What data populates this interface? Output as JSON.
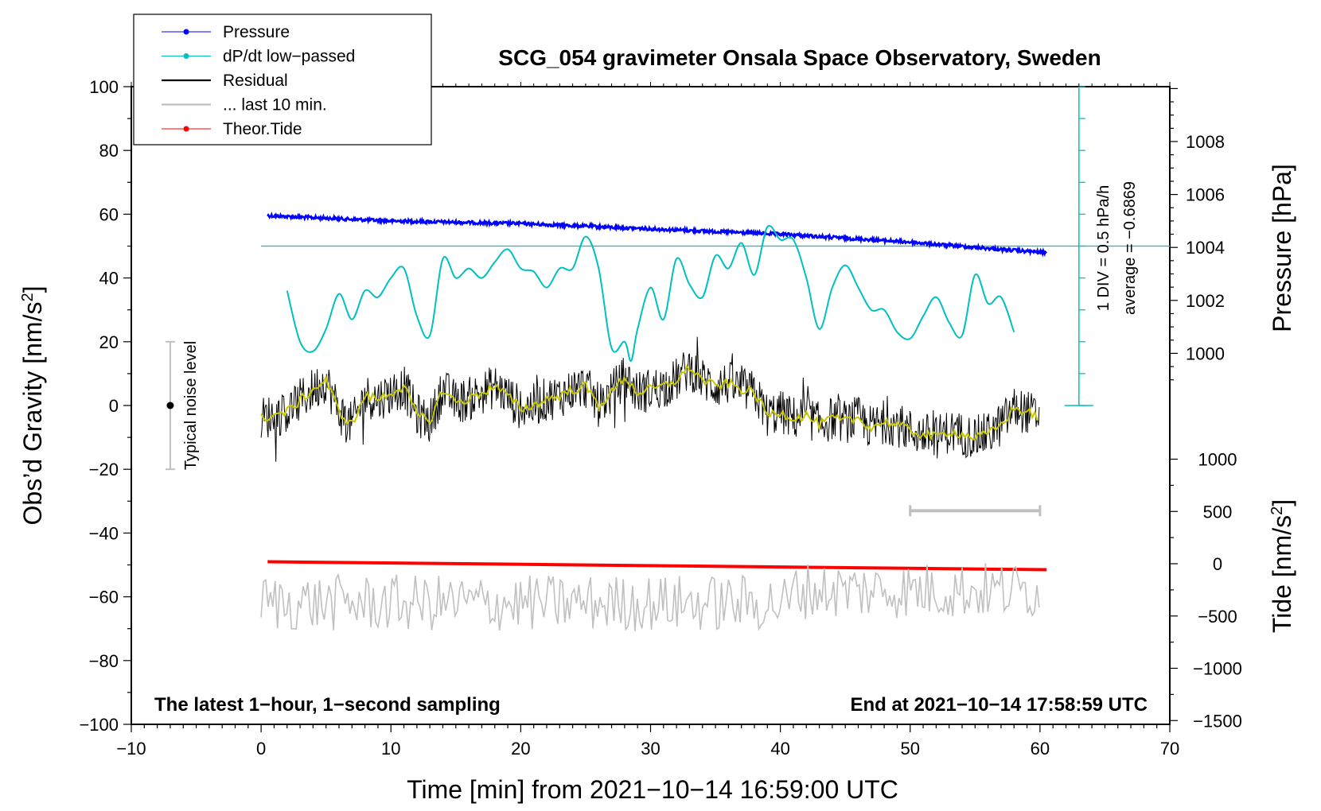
{
  "chart_data": {
    "type": "line",
    "title": "SCG_054 gravimeter Onsala Space Observatory, Sweden",
    "xlabel": "Time [min] from 2021−10−14 16:59:00 UTC",
    "ylabel_left": "Obs’d Gravity [nm/s²]",
    "ylabel_left_main": "Obs’d Gravity [nm/s",
    "ylabel_left_sup": "2",
    "ylabel_left_end": "]",
    "ylabel_right_pressure": "Pressure [hPa]",
    "ylabel_right_tide": "Tide [nm/s²]",
    "ylabel_right_tide_main": "Tide [nm/s",
    "ylabel_right_tide_sup": "2",
    "ylabel_right_tide_end": "]",
    "xlim": [
      -10,
      70
    ],
    "ylim_left": [
      -100,
      100
    ],
    "x_ticks": [
      -10,
      0,
      10,
      20,
      30,
      40,
      50,
      60,
      70
    ],
    "x_tick_labels": [
      "−10",
      "0",
      "10",
      "20",
      "30",
      "40",
      "50",
      "60",
      "70"
    ],
    "y_left_ticks": [
      100,
      80,
      60,
      40,
      20,
      0,
      -20,
      -40,
      -60,
      -80,
      -100
    ],
    "y_left_tick_labels": [
      "100",
      "80",
      "60",
      "40",
      "20",
      "0",
      "−20",
      "−40",
      "−60",
      "−80",
      "−100"
    ],
    "pressure_ticks": [
      1008,
      1006,
      1004,
      1002,
      1000
    ],
    "pressure_tick_labels": [
      "1008",
      "1006",
      "1004",
      "1002",
      "1000"
    ],
    "tide_ticks": [
      1000,
      500,
      0,
      -500,
      -1000,
      -1500
    ],
    "tide_tick_labels": [
      "1000",
      "500",
      "0",
      "−500",
      "−1000",
      "−1500"
    ],
    "legend": {
      "position": "top-left",
      "entries": [
        {
          "label": "Pressure",
          "color": "#0000ff",
          "marker": true
        },
        {
          "label": "dP/dt low−passed",
          "color": "#00c0c0",
          "marker": true
        },
        {
          "label": "Residual",
          "color": "#000000",
          "marker": false
        },
        {
          "label": "... last 10 min.",
          "color": "#c0c0c0",
          "marker": false
        },
        {
          "label": "Theor.Tide",
          "color": "#ff0000",
          "marker": true
        }
      ]
    },
    "annotations": {
      "bottom_left": "The latest 1−hour, 1−second sampling",
      "bottom_right": "End at 2021−10−14 17:58:59 UTC",
      "noise_label": "Typical noise level",
      "dpdt_scale": "1 DIV = 0.5 hPa/h",
      "dpdt_average": "average = −0.6869"
    },
    "noise_bar": {
      "x": -7,
      "y_center": 0,
      "y_min": -20,
      "y_max": 20
    },
    "dpdt_reference_level": 50,
    "ten_minute_bar": {
      "x_start": 50,
      "x_end": 60,
      "y": -33
    },
    "series": [
      {
        "name": "Pressure",
        "color": "#0000ff",
        "unit": "hPa",
        "x": [
          0.5,
          10,
          20,
          30,
          40,
          50,
          55,
          60.5
        ],
        "values": [
          1005.2,
          1005.0,
          1004.9,
          1004.7,
          1004.5,
          1004.2,
          1004.0,
          1003.8
        ]
      },
      {
        "name": "dP/dt low-passed",
        "color": "#00c0c0",
        "unit": "nm/s2-scale",
        "x": [
          2,
          3,
          4,
          5,
          6,
          7,
          8,
          9,
          10,
          11,
          12,
          13,
          14,
          15,
          16,
          17,
          18,
          19,
          20,
          21,
          22,
          23,
          24,
          25,
          26,
          27,
          28,
          28.5,
          29,
          30,
          31,
          32,
          33,
          34,
          35,
          36,
          37,
          38,
          39,
          40,
          41,
          42,
          43,
          44,
          45,
          46,
          47,
          48,
          49,
          50,
          51,
          52,
          53,
          54,
          55,
          56,
          57,
          58
        ],
        "values": [
          36,
          20,
          17,
          24,
          35,
          27,
          36,
          34,
          40,
          43,
          28,
          22,
          46,
          40,
          43,
          40,
          45,
          49,
          43,
          42,
          37,
          43,
          43,
          53,
          43,
          18,
          20,
          14,
          24,
          37,
          27,
          46,
          38,
          34,
          47,
          43,
          51,
          41,
          56,
          52,
          52,
          40,
          24,
          37,
          44,
          37,
          30,
          30,
          23,
          21,
          28,
          34,
          26,
          22,
          41,
          32,
          34,
          23
        ]
      },
      {
        "name": "Residual (smoothed)",
        "color": "#c8c800",
        "unit": "nm/s2",
        "x": [
          0,
          2,
          4,
          5,
          6,
          7,
          8,
          9,
          10,
          11,
          12,
          13,
          14,
          15,
          16,
          17,
          18,
          19,
          20,
          21,
          22,
          23,
          24,
          25,
          26,
          27,
          28,
          29,
          30,
          31,
          32,
          33,
          34,
          35,
          36,
          37,
          38,
          39,
          40,
          41,
          42,
          43,
          44,
          45,
          46,
          47,
          48,
          49,
          50,
          51,
          52,
          53,
          54,
          55,
          56,
          57,
          58,
          59,
          60
        ],
        "values": [
          -4,
          -2,
          5,
          8,
          -2,
          -6,
          3,
          2,
          4,
          6,
          -3,
          -5,
          5,
          1,
          2,
          4,
          6,
          3,
          -1,
          0,
          2,
          3,
          5,
          6,
          0,
          4,
          9,
          4,
          5,
          6,
          8,
          12,
          8,
          6,
          7,
          5,
          4,
          -3,
          -2,
          -4,
          -3,
          -6,
          -4,
          -5,
          -4,
          -7,
          -5,
          -6,
          -8,
          -9,
          -10,
          -8,
          -9,
          -10,
          -9,
          -6,
          -1,
          -2,
          -4
        ]
      },
      {
        "name": "Theor.Tide",
        "color": "#ff0000",
        "unit": "nm/s2",
        "x": [
          0.5,
          60.5
        ],
        "values": [
          -49,
          -51.5
        ]
      }
    ]
  }
}
